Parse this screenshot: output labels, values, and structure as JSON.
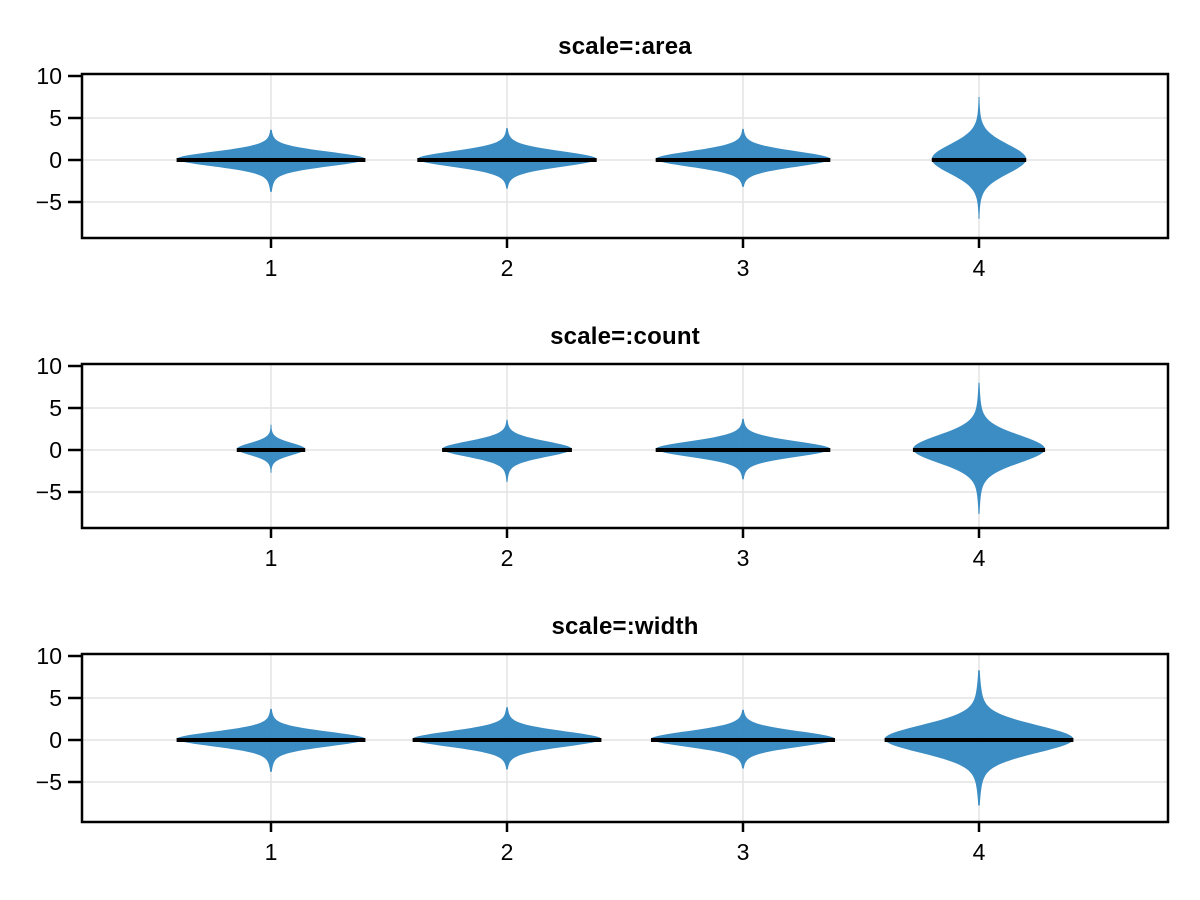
{
  "figure": {
    "background": "#ffffff",
    "frame_color": "#000000",
    "gridline_color": "#e4e4e4",
    "text_color": "#000000"
  },
  "chart_data": {
    "type": "violin",
    "series_color": "#3287c1",
    "median_color": "#000000",
    "legend": "none",
    "grid": "on",
    "subplots": [
      {
        "title": "scale=:area",
        "categories": [
          "1",
          "2",
          "3",
          "4"
        ],
        "y_ticks": [
          "10",
          "5",
          "0",
          "−5"
        ],
        "y_tick_values": [
          10,
          5,
          0,
          -5
        ],
        "ylim": [
          -9.3,
          10.2
        ],
        "violins": [
          {
            "x": 1,
            "median": 0,
            "max_halfwidth": 0.4,
            "core_sigma": 0.85,
            "upper_tail": 3.6,
            "lower_tail": 3.8
          },
          {
            "x": 2,
            "median": 0,
            "max_halfwidth": 0.38,
            "core_sigma": 0.9,
            "upper_tail": 3.8,
            "lower_tail": 3.4
          },
          {
            "x": 3,
            "median": 0,
            "max_halfwidth": 0.37,
            "core_sigma": 0.9,
            "upper_tail": 3.7,
            "lower_tail": 3.2
          },
          {
            "x": 4,
            "median": 0,
            "max_halfwidth": 0.2,
            "core_sigma": 1.7,
            "upper_tail": 7.5,
            "lower_tail": 7.0
          }
        ]
      },
      {
        "title": "scale=:count",
        "categories": [
          "1",
          "2",
          "3",
          "4"
        ],
        "y_ticks": [
          "10",
          "5",
          "0",
          "−5"
        ],
        "y_tick_values": [
          10,
          5,
          0,
          -5
        ],
        "ylim": [
          -9.3,
          10.2
        ],
        "violins": [
          {
            "x": 1,
            "median": 0,
            "max_halfwidth": 0.145,
            "core_sigma": 0.7,
            "upper_tail": 3.0,
            "lower_tail": 2.7
          },
          {
            "x": 2,
            "median": 0,
            "max_halfwidth": 0.275,
            "core_sigma": 0.9,
            "upper_tail": 3.6,
            "lower_tail": 3.8
          },
          {
            "x": 3,
            "median": 0,
            "max_halfwidth": 0.37,
            "core_sigma": 0.9,
            "upper_tail": 3.7,
            "lower_tail": 3.5
          },
          {
            "x": 4,
            "median": 0,
            "max_halfwidth": 0.28,
            "core_sigma": 1.6,
            "upper_tail": 8.0,
            "lower_tail": 7.6
          }
        ]
      },
      {
        "title": "scale=:width",
        "categories": [
          "1",
          "2",
          "3",
          "4"
        ],
        "y_ticks": [
          "10",
          "5",
          "0",
          "−5"
        ],
        "y_tick_values": [
          10,
          5,
          0,
          -5
        ],
        "ylim": [
          -9.8,
          10.2
        ],
        "violins": [
          {
            "x": 1,
            "median": 0,
            "max_halfwidth": 0.4,
            "core_sigma": 0.85,
            "upper_tail": 3.7,
            "lower_tail": 3.8
          },
          {
            "x": 2,
            "median": 0,
            "max_halfwidth": 0.4,
            "core_sigma": 0.9,
            "upper_tail": 3.9,
            "lower_tail": 3.5
          },
          {
            "x": 3,
            "median": 0,
            "max_halfwidth": 0.39,
            "core_sigma": 0.9,
            "upper_tail": 3.6,
            "lower_tail": 3.4
          },
          {
            "x": 4,
            "median": 0,
            "max_halfwidth": 0.4,
            "core_sigma": 1.6,
            "upper_tail": 8.3,
            "lower_tail": 7.8
          }
        ]
      }
    ]
  }
}
